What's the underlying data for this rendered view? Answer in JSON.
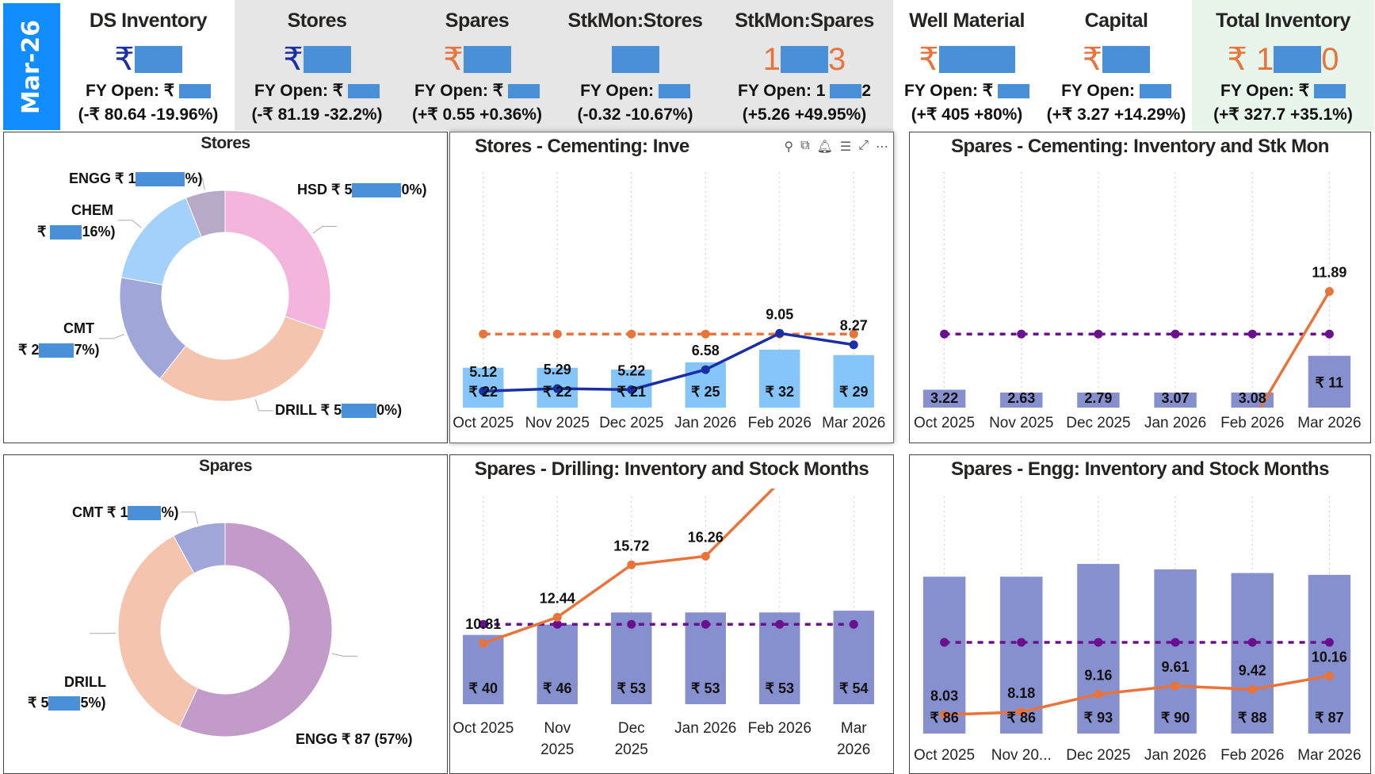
{
  "period": "Mar-26",
  "kpis": [
    {
      "title": "DS Inventory",
      "value_prefix": "₹",
      "value_suffix": "",
      "value_color": "#1a2fa6",
      "fy_open": "FY Open: ₹",
      "fy_suffix": "",
      "change": "(-₹ 80.64 -19.96%)"
    },
    {
      "title": "Stores",
      "value_prefix": "₹",
      "value_suffix": "",
      "value_color": "#1a2fa6",
      "fy_open": "FY Open: ₹",
      "fy_suffix": "",
      "change": "(-₹ 81.19 -32.2%)"
    },
    {
      "title": "Spares",
      "value_prefix": "₹",
      "value_suffix": "",
      "value_color": "#e8743b",
      "fy_open": "FY Open: ₹",
      "fy_suffix": "",
      "change": "(+₹ 0.55 +0.36%)"
    },
    {
      "title": "StkMon:Stores",
      "value_prefix": "",
      "value_suffix": "",
      "value_color": "#1a2fa6",
      "fy_open": "FY Open:",
      "fy_suffix": "",
      "change": "(-0.32 -10.67%)"
    },
    {
      "title": "StkMon:Spares",
      "value_prefix": "1",
      "value_suffix": "3",
      "value_color": "#e8743b",
      "fy_open": "FY Open: 1",
      "fy_suffix": "2",
      "change": "(+5.26 +49.95%)"
    },
    {
      "title": "Well Material",
      "value_prefix": "₹",
      "value_suffix": "",
      "value_color": "#e8743b",
      "fy_open": "FY Open: ₹",
      "fy_suffix": "",
      "change": "(+₹ 405 +80%)"
    },
    {
      "title": "Capital",
      "value_prefix": "₹",
      "value_suffix": "",
      "value_color": "#e8743b",
      "fy_open": "FY Open:",
      "fy_suffix": "",
      "change": "(+₹ 3.27 +14.29%)"
    },
    {
      "title": "Total Inventory",
      "value_prefix": "₹ 1",
      "value_suffix": "0",
      "value_color": "#e8743b",
      "fy_open": "FY Open: ₹",
      "fy_suffix": "",
      "change": "(+₹ 327.7 +35.1%)"
    }
  ],
  "visual_toolbar": [
    "pin-icon",
    "copy-icon",
    "bell-icon",
    "filter-icon",
    "focus-mode-icon",
    "more-options-icon"
  ],
  "donuts": [
    {
      "title": "Stores",
      "slices": [
        {
          "name": "HSD",
          "percent": 30,
          "color": "#f4b5dc",
          "label_prefix": "HSD ₹ 5",
          "label_suffix": "0%)"
        },
        {
          "name": "DRILL",
          "percent": 30,
          "color": "#f4c4ae",
          "label_prefix": "DRILL ₹ 5",
          "label_suffix": "0%)"
        },
        {
          "name": "CMT",
          "percent": 17,
          "color": "#a0a6d8",
          "label_prefix": "CMT",
          "label_line2_prefix": "₹ 2",
          "label_suffix": "7%)"
        },
        {
          "name": "CHEM",
          "percent": 16,
          "color": "#a4d0fc",
          "label_prefix": "CHEM",
          "label_line2_prefix": "₹",
          "label_suffix": "16%)"
        },
        {
          "name": "ENGG",
          "percent": 6,
          "color": "#b7a9c8",
          "label_prefix": "ENGG ₹ 1",
          "label_suffix": "%)"
        }
      ]
    },
    {
      "title": "Spares",
      "slices": [
        {
          "name": "ENGG",
          "percent": 57,
          "color": "#c39bc9",
          "label_prefix": "ENGG ₹ 87 (57%)",
          "label_suffix": ""
        },
        {
          "name": "DRILL",
          "percent": 35,
          "color": "#f4c4ae",
          "label_prefix": "DRILL",
          "label_line2_prefix": "₹ 5",
          "label_suffix": "5%)"
        },
        {
          "name": "CMT",
          "percent": 8,
          "color": "#a0a6d8",
          "label_prefix": "CMT ₹ 1",
          "label_suffix": "%)"
        }
      ]
    }
  ],
  "chart_data": [
    {
      "type": "bar+line",
      "title": "Stores - Cementing: Inve",
      "categories": [
        "Oct 2025",
        "Nov 2025",
        "Dec 2025",
        "Jan 2026",
        "Feb 2026",
        "Mar 2026"
      ],
      "tick_labels": [
        "Oct 2025",
        "Nov 2025",
        "Dec 2025",
        "Jan 2026",
        "Feb 2026",
        "Mar 2026"
      ],
      "bar_ylim": [
        0,
        130
      ],
      "line_ylim": [
        4,
        20
      ],
      "bars": {
        "values": [
          22,
          22,
          21,
          25,
          32,
          29
        ],
        "labels": [
          "₹ 22",
          "₹ 22",
          "₹ 21",
          "₹ 25",
          "₹ 32",
          "₹ 29"
        ],
        "color": "#86c5fa"
      },
      "line": {
        "values": [
          5.12,
          5.29,
          5.22,
          6.58,
          9.05,
          8.27
        ],
        "labels": [
          "5.12",
          "5.29",
          "5.22",
          "6.58",
          "9.05",
          "8.27"
        ],
        "color": "#1a2fa6"
      },
      "target": {
        "values": [
          9,
          9,
          9,
          9,
          9,
          9
        ],
        "color": "#e8743b",
        "dash": "dashed"
      }
    },
    {
      "type": "bar+line",
      "title": "Spares - Cementing: Inventory and Stk Mon",
      "categories": [
        "Oct 2025",
        "Nov 2025",
        "Dec 2025",
        "Jan 2026",
        "Feb 2026",
        "Mar 2026"
      ],
      "tick_labels": [
        "Oct 2025",
        "Nov 2025",
        "Dec 2025",
        "Jan 2026",
        "Feb 2026",
        "Mar 2026"
      ],
      "bar_ylim": [
        0,
        50
      ],
      "line_ylim": [
        4,
        20
      ],
      "bars": {
        "values": [
          3.8,
          3.2,
          3.2,
          3.2,
          3.2,
          11
        ],
        "labels": [
          null,
          null,
          null,
          null,
          null,
          "₹ 11"
        ],
        "color": "#8790cf"
      },
      "line": {
        "values": [
          3.22,
          2.63,
          2.79,
          3.07,
          3.08,
          11.89
        ],
        "labels": [
          "3.22",
          "2.63",
          "2.79",
          "3.07",
          "3.08",
          "11.89"
        ],
        "color": "#e8743b"
      },
      "target": {
        "values": [
          9,
          9,
          9,
          9,
          9,
          9
        ],
        "color": "#6a0f8e",
        "dash": "dotted"
      }
    },
    {
      "type": "bar+line",
      "title": "Spares - Drilling: Inventory and Stock Months",
      "categories": [
        "Oct 2025",
        "Nov 2025",
        "Dec 2025",
        "Jan 2026",
        "Feb 2026",
        "Mar 2026"
      ],
      "tick_labels": [
        "Oct 2025",
        "Nov\n2025",
        "Dec\n2025",
        "Jan 2026",
        "Feb 2026",
        "Mar\n2026"
      ],
      "bar_ylim": [
        0,
        120
      ],
      "line_ylim": [
        7,
        20
      ],
      "bars": {
        "values": [
          40,
          46,
          53,
          53,
          53,
          54
        ],
        "labels": [
          "₹ 40",
          "₹ 46",
          "₹ 53",
          "₹ 53",
          "₹ 53",
          "₹ 54"
        ],
        "color": "#8790cf"
      },
      "line": {
        "values": [
          10.81,
          12.44,
          15.72,
          16.26,
          20.9,
          null
        ],
        "labels": [
          "10.81",
          "12.44",
          "15.72",
          "16.26",
          null,
          null
        ],
        "color": "#e8743b"
      },
      "target": {
        "values": [
          12,
          12,
          12,
          12,
          12,
          12
        ],
        "color": "#6a0f8e",
        "dash": "dotted"
      }
    },
    {
      "type": "bar+line",
      "title": "Spares - Engg: Inventory and Stock Months",
      "categories": [
        "Oct 2025",
        "Nov 2025",
        "Dec 2025",
        "Jan 2026",
        "Feb 2026",
        "Mar 2026"
      ],
      "tick_labels": [
        "Oct 2025",
        "Nov 20...",
        "Dec 2025",
        "Jan 2026",
        "Feb 2026",
        "Mar 2026"
      ],
      "bar_ylim": [
        0,
        130
      ],
      "line_ylim": [
        7,
        20
      ],
      "bars": {
        "values": [
          86,
          86,
          93,
          90,
          88,
          87
        ],
        "labels": [
          "₹ 86",
          "₹ 86",
          "₹ 93",
          "₹ 90",
          "₹ 88",
          "₹ 87"
        ],
        "color": "#8790cf"
      },
      "line": {
        "values": [
          8.03,
          8.18,
          9.16,
          9.61,
          9.42,
          10.16
        ],
        "labels": [
          "8.03",
          "8.18",
          "9.16",
          "9.61",
          "9.42",
          "10.16"
        ],
        "color": "#e8743b"
      },
      "target": {
        "values": [
          12,
          12,
          12,
          12,
          12,
          12
        ],
        "color": "#6a0f8e",
        "dash": "dotted"
      }
    }
  ]
}
